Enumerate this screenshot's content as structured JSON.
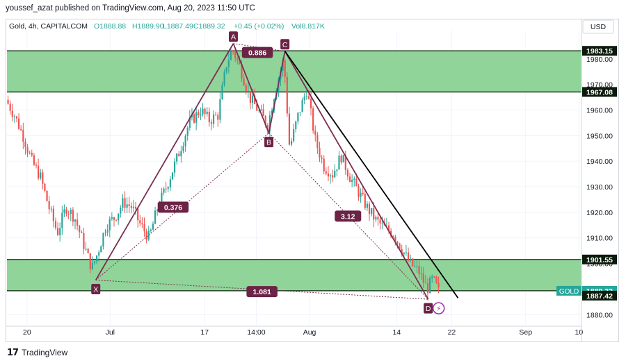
{
  "header": {
    "publisher": "youssef_azat published on TradingView.com, Aug 20, 2023 11:50 UTC"
  },
  "legend": {
    "symbol": "Gold, 4h, CAPITALCOM",
    "open": "O1888.88",
    "high": "H1889.90",
    "low": "L1887.49",
    "close": "C1889.32",
    "change": "+0.45 (+0.02%)",
    "volume": "Vol8.817K"
  },
  "currency": "USD",
  "footer": {
    "brand": "TradingView"
  },
  "colors": {
    "zone_fill": "#90d49a",
    "zone_line": "#1e3d1e",
    "pattern": "#7b2d50",
    "label_bg": "#6b2346",
    "bull": "#26a69a",
    "bear": "#ef5350",
    "trendline": "#000000",
    "price_tag": "#26a69a"
  },
  "chart_data": {
    "type": "candlestick",
    "y_axis": {
      "min": 1876,
      "max": 1990,
      "ticks": [
        1880,
        1890,
        1900,
        1910,
        1920,
        1930,
        1940,
        1950,
        1960,
        1970,
        1980
      ]
    },
    "x_ticks": [
      {
        "label": "20",
        "t": 0.035
      },
      {
        "label": "Jul",
        "t": 0.18
      },
      {
        "label": "17",
        "t": 0.345
      },
      {
        "label": "14:00",
        "t": 0.435
      },
      {
        "label": "Aug",
        "t": 0.528
      },
      {
        "label": "14",
        "t": 0.68
      },
      {
        "label": "22",
        "t": 0.776
      },
      {
        "label": "Sep",
        "t": 0.905
      },
      {
        "label": "10",
        "t": 0.998
      }
    ],
    "zones": [
      {
        "top": 1983.15,
        "bottom": 1967.08
      },
      {
        "top": 1901.55,
        "bottom": 1889.32
      }
    ],
    "price_labels": [
      {
        "text": "1983.15",
        "value": 1983.15,
        "style": "dark"
      },
      {
        "text": "1967.08",
        "value": 1967.08,
        "style": "dark"
      },
      {
        "text": "1901.55",
        "value": 1901.55,
        "style": "dark"
      },
      {
        "text": "1889.32",
        "value": 1889.32,
        "style": "green",
        "tag": "GOLD"
      },
      {
        "text": "1887.42",
        "value": 1887.42,
        "style": "dark"
      }
    ],
    "harmonic_pattern": {
      "points": [
        {
          "name": "X",
          "t": 0.155,
          "price": 1893.5
        },
        {
          "name": "A",
          "t": 0.395,
          "price": 1986
        },
        {
          "name": "B",
          "t": 0.457,
          "price": 1951
        },
        {
          "name": "C",
          "t": 0.485,
          "price": 1983
        },
        {
          "name": "D",
          "t": 0.735,
          "price": 1886
        }
      ],
      "ratios": [
        {
          "text": "0.376",
          "t": 0.29,
          "price": 1922
        },
        {
          "text": "0.886",
          "t": 0.437,
          "price": 1982.5
        },
        {
          "text": "3.12",
          "t": 0.595,
          "price": 1918.5
        },
        {
          "text": "1.081",
          "t": 0.445,
          "price": 1889
        }
      ]
    },
    "trendline": {
      "from": {
        "t": 0.485,
        "price": 1983
      },
      "to": {
        "t": 0.787,
        "price": 1886.5
      }
    },
    "price_path": [
      {
        "t": 0.0,
        "price": 1964
      },
      {
        "t": 0.015,
        "price": 1958
      },
      {
        "t": 0.03,
        "price": 1950
      },
      {
        "t": 0.045,
        "price": 1940
      },
      {
        "t": 0.06,
        "price": 1934
      },
      {
        "t": 0.075,
        "price": 1922
      },
      {
        "t": 0.09,
        "price": 1912
      },
      {
        "t": 0.105,
        "price": 1922
      },
      {
        "t": 0.12,
        "price": 1918
      },
      {
        "t": 0.135,
        "price": 1908
      },
      {
        "t": 0.15,
        "price": 1898
      },
      {
        "t": 0.16,
        "price": 1904
      },
      {
        "t": 0.175,
        "price": 1915
      },
      {
        "t": 0.19,
        "price": 1918
      },
      {
        "t": 0.205,
        "price": 1924
      },
      {
        "t": 0.22,
        "price": 1922
      },
      {
        "t": 0.235,
        "price": 1915
      },
      {
        "t": 0.25,
        "price": 1910
      },
      {
        "t": 0.265,
        "price": 1922
      },
      {
        "t": 0.28,
        "price": 1930
      },
      {
        "t": 0.3,
        "price": 1942
      },
      {
        "t": 0.32,
        "price": 1955
      },
      {
        "t": 0.34,
        "price": 1960
      },
      {
        "t": 0.355,
        "price": 1956
      },
      {
        "t": 0.37,
        "price": 1958
      },
      {
        "t": 0.385,
        "price": 1978
      },
      {
        "t": 0.395,
        "price": 1984
      },
      {
        "t": 0.41,
        "price": 1976
      },
      {
        "t": 0.425,
        "price": 1965
      },
      {
        "t": 0.44,
        "price": 1960
      },
      {
        "t": 0.457,
        "price": 1954
      },
      {
        "t": 0.47,
        "price": 1968
      },
      {
        "t": 0.485,
        "price": 1980
      },
      {
        "t": 0.495,
        "price": 1945
      },
      {
        "t": 0.51,
        "price": 1958
      },
      {
        "t": 0.525,
        "price": 1968
      },
      {
        "t": 0.54,
        "price": 1948
      },
      {
        "t": 0.555,
        "price": 1938
      },
      {
        "t": 0.57,
        "price": 1935
      },
      {
        "t": 0.585,
        "price": 1942
      },
      {
        "t": 0.6,
        "price": 1934
      },
      {
        "t": 0.615,
        "price": 1928
      },
      {
        "t": 0.63,
        "price": 1922
      },
      {
        "t": 0.645,
        "price": 1917
      },
      {
        "t": 0.66,
        "price": 1914
      },
      {
        "t": 0.675,
        "price": 1912
      },
      {
        "t": 0.69,
        "price": 1906
      },
      {
        "t": 0.705,
        "price": 1900
      },
      {
        "t": 0.72,
        "price": 1897
      },
      {
        "t": 0.735,
        "price": 1890
      },
      {
        "t": 0.745,
        "price": 1894
      },
      {
        "t": 0.755,
        "price": 1889
      }
    ]
  }
}
